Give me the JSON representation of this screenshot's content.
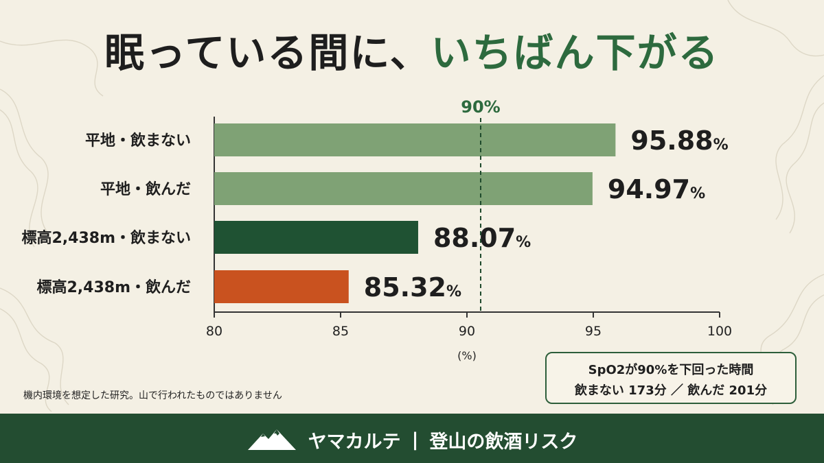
{
  "title": {
    "part1": "眠っている間に、",
    "part2": "いちばん下がる"
  },
  "chart_data": {
    "type": "bar",
    "orientation": "horizontal",
    "categories": [
      "平地・飲まない",
      "平地・飲んだ",
      "標高2,438m・飲まない",
      "標高2,438m・飲んだ"
    ],
    "values": [
      95.88,
      94.97,
      88.07,
      85.32
    ],
    "value_labels": [
      "95.88",
      "94.97",
      "88.07",
      "85.32"
    ],
    "value_unit": "%",
    "bar_colors": [
      "#7fa275",
      "#7fa275",
      "#1f5233",
      "#c9521f"
    ],
    "xlim": [
      80,
      100
    ],
    "xticks": [
      "80",
      "85",
      "90",
      "95",
      "100"
    ],
    "xlabel": "(%)",
    "reference_line": {
      "value": 90,
      "label": "90%",
      "color": "#2d6a3e"
    },
    "grid": false
  },
  "footnote": "機内環境を想定した研究。山で行われたものではありません",
  "callout": {
    "line1": "SpO2が90%を下回った時間",
    "line2": "飲まない 173分 ／ 飲んだ 201分"
  },
  "footer": {
    "brand": "ヤマカルテ",
    "separator": "|",
    "tagline": "登山の飲酒リスク",
    "logo_icon": "mountain-icon"
  },
  "colors": {
    "background": "#f4f0e4",
    "accent": "#2d6a3e",
    "footer_bg": "#234d31"
  }
}
